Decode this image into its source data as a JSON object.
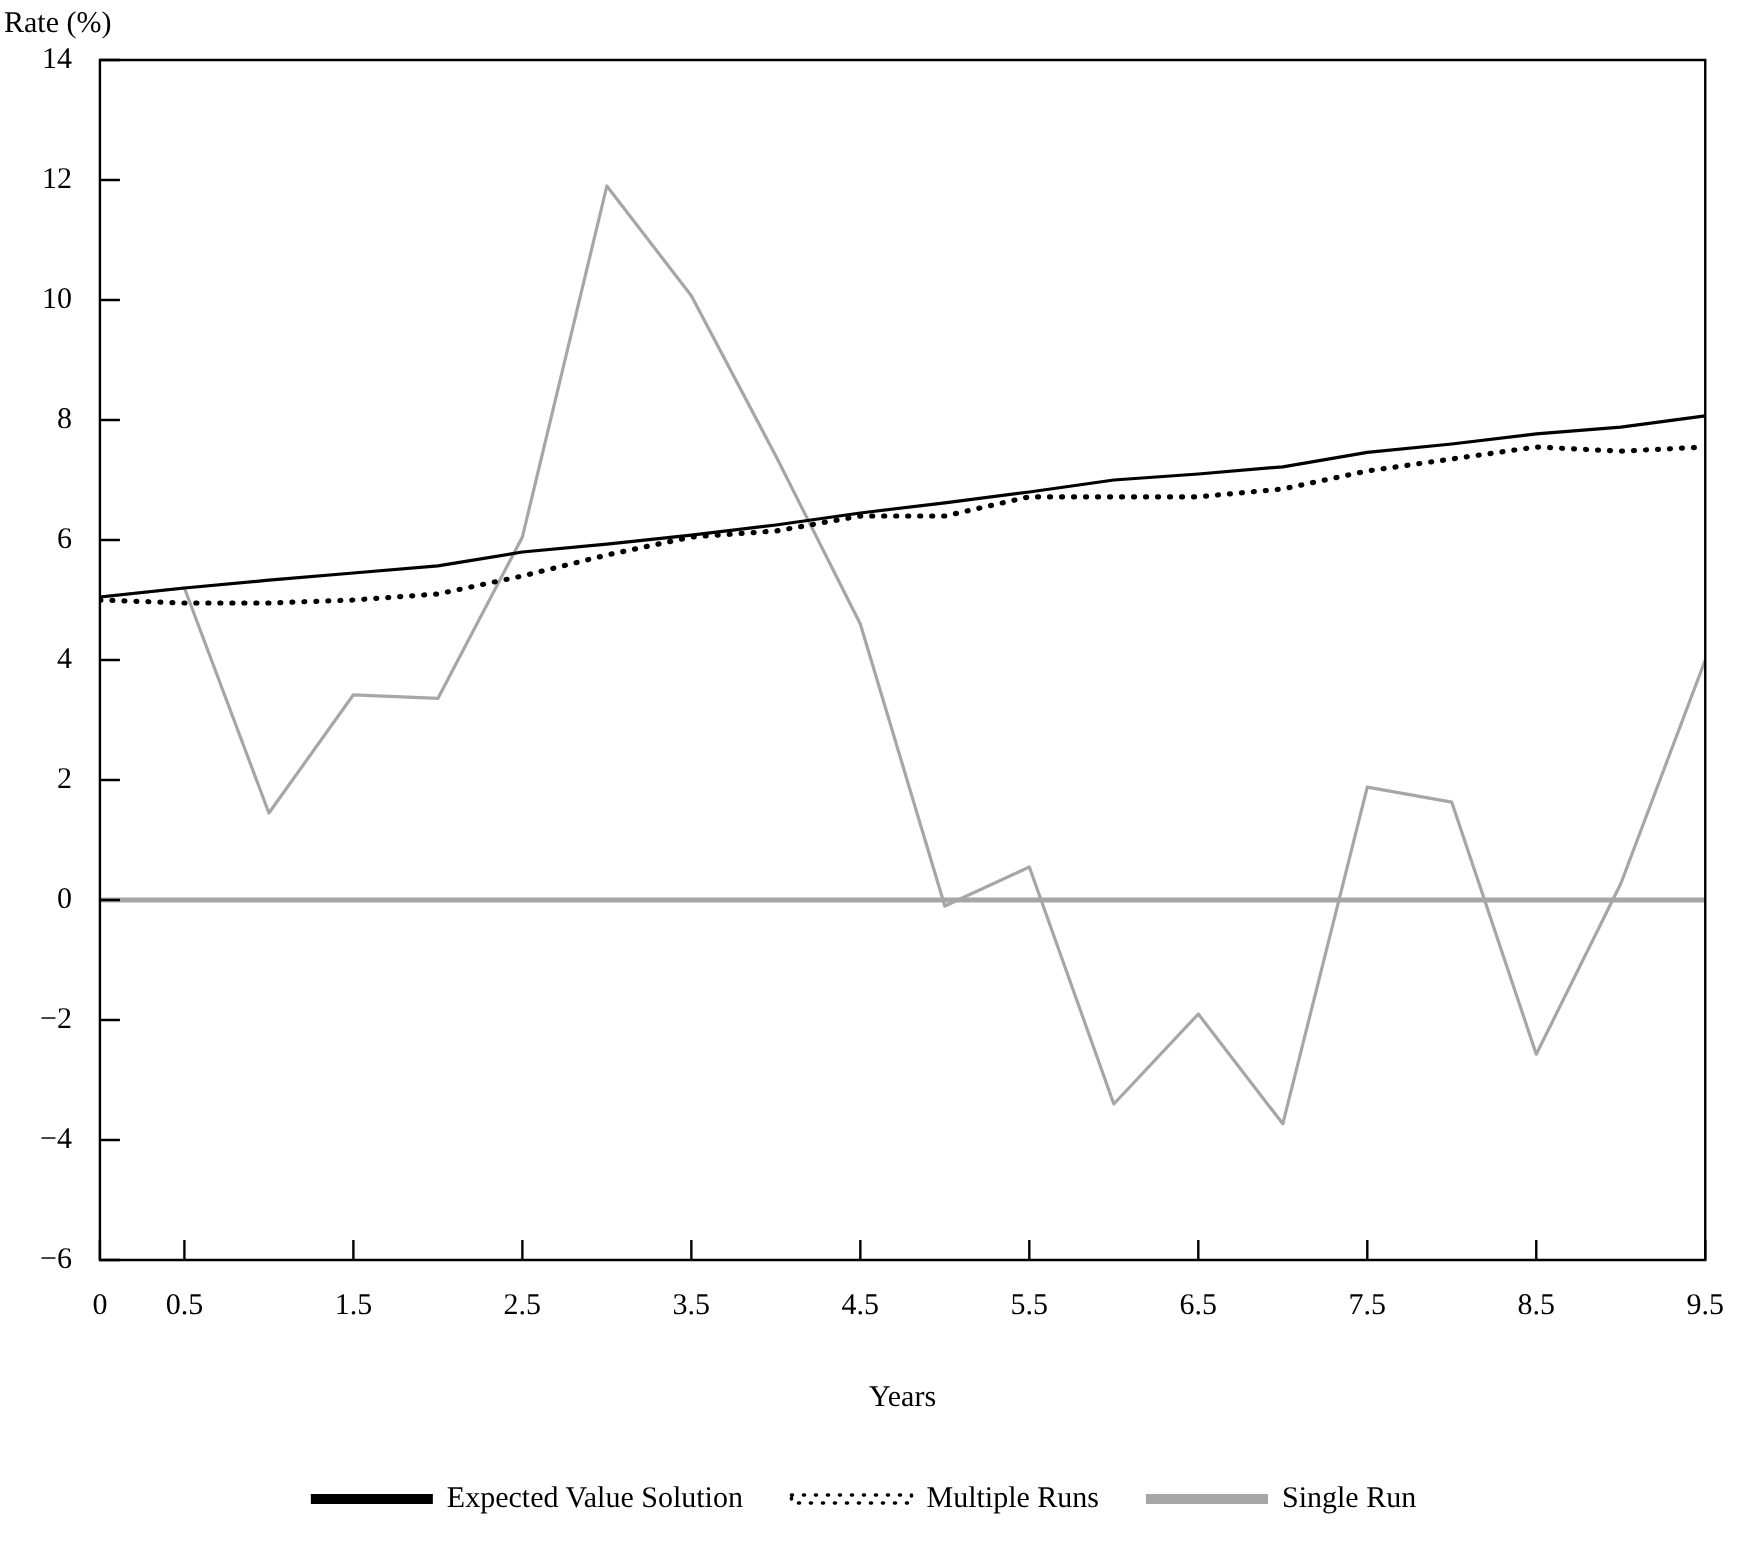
{
  "chart_data": {
    "type": "line",
    "xlabel": "Years",
    "ylabel": "Rate (%)",
    "x": [
      0,
      0.5,
      1,
      1.5,
      2,
      2.5,
      3,
      3.5,
      4,
      4.5,
      5,
      5.5,
      6,
      6.5,
      7,
      7.5,
      8,
      8.5,
      9,
      9.5
    ],
    "series": [
      {
        "name": "Expected Value Solution",
        "color": "#000000",
        "line_style": "solid",
        "values": [
          5.05,
          5.2,
          5.33,
          5.45,
          5.57,
          5.8,
          5.93,
          6.08,
          6.25,
          6.45,
          6.62,
          6.8,
          7.0,
          7.1,
          7.22,
          7.46,
          7.6,
          7.77,
          7.88,
          8.07
        ]
      },
      {
        "name": "Multiple Runs",
        "color": "#000000",
        "line_style": "dotted",
        "values": [
          5.0,
          4.95,
          4.95,
          5.0,
          5.1,
          5.4,
          5.75,
          6.05,
          6.15,
          6.4,
          6.4,
          6.72,
          6.72,
          6.72,
          6.85,
          7.15,
          7.35,
          7.55,
          7.48,
          7.55
        ]
      },
      {
        "name": "Single Run",
        "color": "#a6a6a6",
        "line_style": "solid",
        "values": [
          5.05,
          5.2,
          1.45,
          3.42,
          3.36,
          6.05,
          11.9,
          10.07,
          7.4,
          4.6,
          -0.1,
          0.55,
          -3.4,
          -1.9,
          -3.73,
          1.88,
          1.63,
          -2.57,
          0.27,
          4.0
        ]
      }
    ],
    "xlim": [
      0,
      9.5
    ],
    "xticks": [
      0,
      0.5,
      1.5,
      2.5,
      3.5,
      4.5,
      5.5,
      6.5,
      7.5,
      8.5,
      9.5
    ],
    "ylim": [
      -6,
      14
    ],
    "yticks": [
      -6,
      -4,
      -2,
      0,
      2,
      4,
      6,
      8,
      10,
      12,
      14
    ],
    "ref_lines": [
      {
        "axis": "y",
        "value": 0,
        "color": "#a6a6a6"
      }
    ],
    "grid": false,
    "legend": "bottom",
    "marker": "none"
  }
}
